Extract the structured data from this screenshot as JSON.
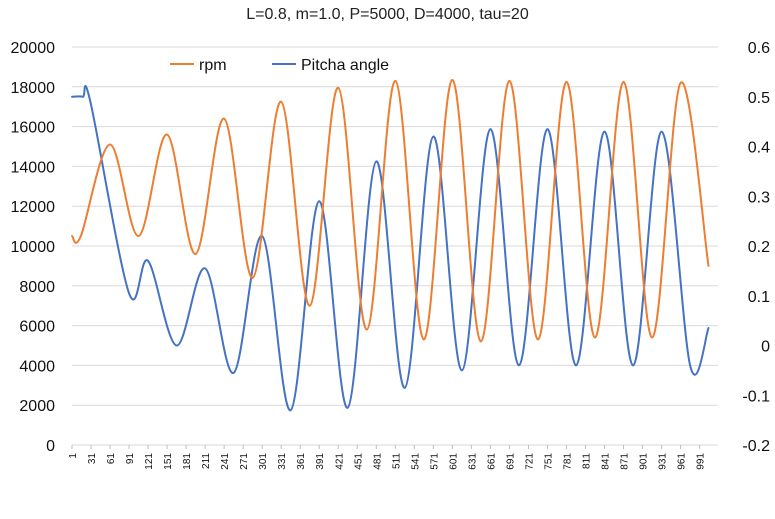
{
  "chart_data": {
    "type": "line",
    "title": "L=0.8, m=1.0, P=5000, D=4000, tau=20",
    "xlabel": "",
    "ylabel": "",
    "y2label": "",
    "xlim": [
      1,
      1020
    ],
    "x_ticks": [
      "1",
      "31",
      "61",
      "91",
      "121",
      "151",
      "181",
      "211",
      "241",
      "271",
      "301",
      "331",
      "361",
      "391",
      "421",
      "451",
      "481",
      "511",
      "541",
      "571",
      "601",
      "631",
      "661",
      "691",
      "721",
      "751",
      "781",
      "811",
      "841",
      "871",
      "901",
      "931",
      "961",
      "991"
    ],
    "y_left": {
      "min": 0,
      "max": 20000,
      "ticks": [
        "0",
        "2000",
        "4000",
        "6000",
        "8000",
        "10000",
        "12000",
        "14000",
        "16000",
        "18000",
        "20000"
      ]
    },
    "y_right": {
      "min": -0.2,
      "max": 0.6,
      "ticks": [
        "-0.2",
        "-0.1",
        "0",
        "0.1",
        "0.2",
        "0.3",
        "0.4",
        "0.5",
        "0.6"
      ]
    },
    "grid": "horizontal",
    "legend_position": "top-left",
    "series": [
      {
        "name": "rpm",
        "axis": "left",
        "color": "#ED7D31",
        "points": [
          [
            1,
            10500
          ],
          [
            15,
            10500
          ],
          [
            61,
            15100
          ],
          [
            106,
            10500
          ],
          [
            151,
            15600
          ],
          [
            196,
            9600
          ],
          [
            241,
            16400
          ],
          [
            286,
            8400
          ],
          [
            331,
            17250
          ],
          [
            376,
            7000
          ],
          [
            421,
            17950
          ],
          [
            466,
            5800
          ],
          [
            511,
            18300
          ],
          [
            556,
            5300
          ],
          [
            601,
            18350
          ],
          [
            646,
            5200
          ],
          [
            691,
            18300
          ],
          [
            736,
            5300
          ],
          [
            781,
            18250
          ],
          [
            826,
            5400
          ],
          [
            871,
            18250
          ],
          [
            916,
            5400
          ],
          [
            961,
            18200
          ],
          [
            1005,
            9000
          ]
        ]
      },
      {
        "name": "Pitcha angle",
        "axis": "right",
        "color": "#4472C4",
        "points": [
          [
            1,
            0.5
          ],
          [
            18,
            0.5
          ],
          [
            30,
            0.49
          ],
          [
            91,
            0.105
          ],
          [
            121,
            0.17
          ],
          [
            166,
            0.0
          ],
          [
            211,
            0.155
          ],
          [
            256,
            -0.055
          ],
          [
            301,
            0.22
          ],
          [
            346,
            -0.13
          ],
          [
            391,
            0.29
          ],
          [
            436,
            -0.125
          ],
          [
            481,
            0.37
          ],
          [
            526,
            -0.085
          ],
          [
            571,
            0.42
          ],
          [
            616,
            -0.05
          ],
          [
            661,
            0.435
          ],
          [
            706,
            -0.04
          ],
          [
            751,
            0.435
          ],
          [
            796,
            -0.04
          ],
          [
            841,
            0.43
          ],
          [
            886,
            -0.04
          ],
          [
            931,
            0.43
          ],
          [
            976,
            -0.04
          ],
          [
            1005,
            0.035
          ]
        ]
      }
    ]
  }
}
